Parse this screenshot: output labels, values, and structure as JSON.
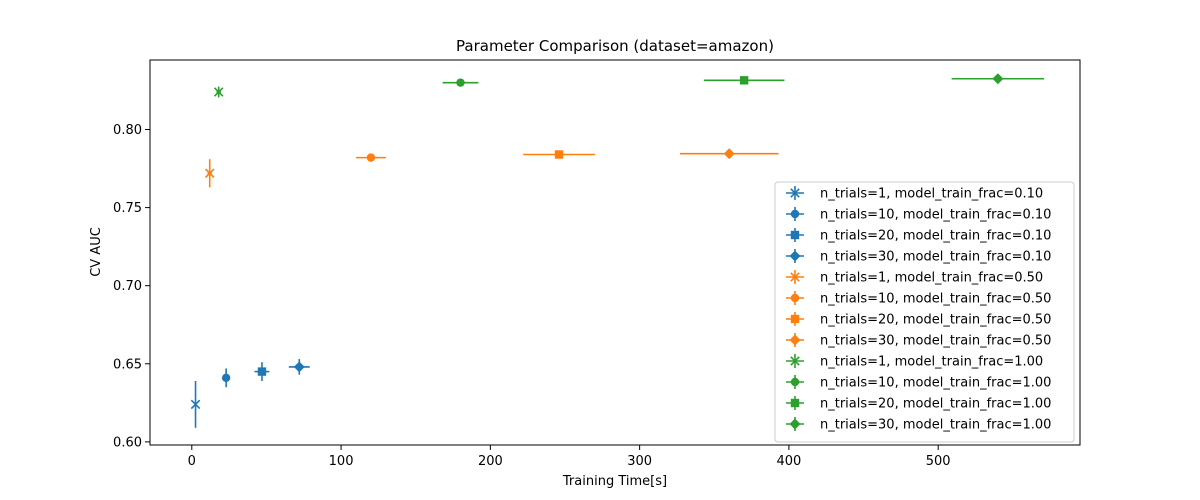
{
  "chart_data": {
    "type": "scatter",
    "title": "Parameter Comparison (dataset=amazon)",
    "xlabel": "Training Time[s]",
    "ylabel": "CV AUC",
    "xlim": [
      -28,
      595
    ],
    "ylim": [
      0.598,
      0.8445
    ],
    "xticks": [
      0,
      100,
      200,
      300,
      400,
      500
    ],
    "yticks": [
      0.6,
      0.65,
      0.7,
      0.75,
      0.8
    ],
    "ytick_labels": [
      "0.60",
      "0.65",
      "0.70",
      "0.75",
      "0.80"
    ],
    "xtick_labels": [
      "0",
      "100",
      "200",
      "300",
      "400",
      "500"
    ],
    "grid": false,
    "legend_position": "lower-right",
    "series": [
      {
        "name": "n_trials=1, model_train_frac=0.10",
        "color": "#1f77b4",
        "marker": "x",
        "x": 2.5,
        "y": 0.624,
        "xerr": 0.5,
        "yerr": 0.015
      },
      {
        "name": "n_trials=10, model_train_frac=0.10",
        "color": "#1f77b4",
        "marker": "o",
        "x": 23,
        "y": 0.641,
        "xerr": 1.5,
        "yerr": 0.006
      },
      {
        "name": "n_trials=20, model_train_frac=0.10",
        "color": "#1f77b4",
        "marker": "s",
        "x": 47,
        "y": 0.645,
        "xerr": 5,
        "yerr": 0.006
      },
      {
        "name": "n_trials=30, model_train_frac=0.10",
        "color": "#1f77b4",
        "marker": "D",
        "x": 72,
        "y": 0.648,
        "xerr": 7,
        "yerr": 0.005
      },
      {
        "name": "n_trials=1, model_train_frac=0.50",
        "color": "#ff7f0e",
        "marker": "x",
        "x": 12,
        "y": 0.772,
        "xerr": 1.5,
        "yerr": 0.009
      },
      {
        "name": "n_trials=10, model_train_frac=0.50",
        "color": "#ff7f0e",
        "marker": "o",
        "x": 120,
        "y": 0.782,
        "xerr": 10,
        "yerr": 0.001
      },
      {
        "name": "n_trials=20, model_train_frac=0.50",
        "color": "#ff7f0e",
        "marker": "s",
        "x": 246,
        "y": 0.784,
        "xerr": 24,
        "yerr": 0.001
      },
      {
        "name": "n_trials=30, model_train_frac=0.50",
        "color": "#ff7f0e",
        "marker": "D",
        "x": 360,
        "y": 0.7845,
        "xerr": 33,
        "yerr": 0.001
      },
      {
        "name": "n_trials=1, model_train_frac=1.00",
        "color": "#2ca02c",
        "marker": "x",
        "x": 18,
        "y": 0.824,
        "xerr": 1.5,
        "yerr": 0.0035
      },
      {
        "name": "n_trials=10, model_train_frac=1.00",
        "color": "#2ca02c",
        "marker": "o",
        "x": 180,
        "y": 0.83,
        "xerr": 12,
        "yerr": 0.0008
      },
      {
        "name": "n_trials=20, model_train_frac=1.00",
        "color": "#2ca02c",
        "marker": "s",
        "x": 370,
        "y": 0.8315,
        "xerr": 27,
        "yerr": 0.0008
      },
      {
        "name": "n_trials=30, model_train_frac=1.00",
        "color": "#2ca02c",
        "marker": "D",
        "x": 540,
        "y": 0.8325,
        "xerr": 31,
        "yerr": 0.0008
      }
    ]
  }
}
